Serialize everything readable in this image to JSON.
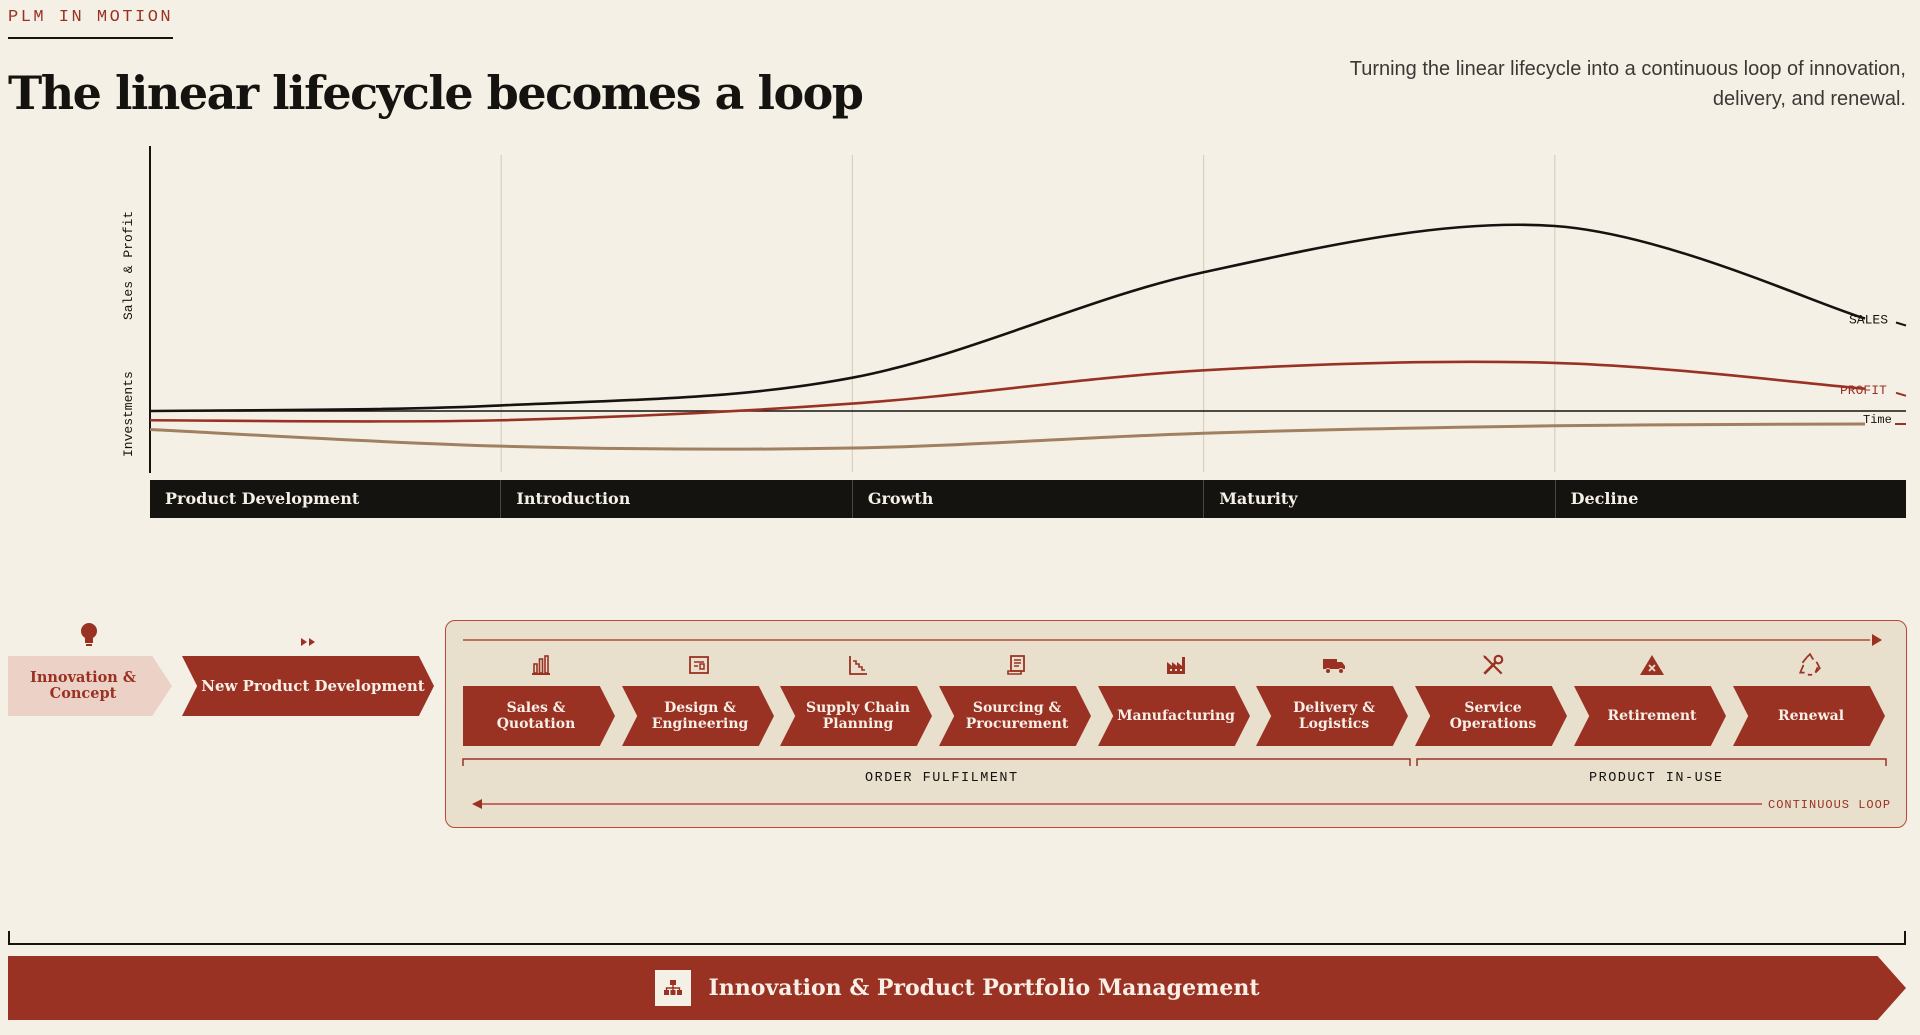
{
  "header": {
    "eyebrow": "PLM IN MOTION",
    "title": "The linear lifecycle becomes a loop",
    "subtitle": "Turning the linear lifecycle into a continuous loop of innovation, delivery, and renewal."
  },
  "chart_data": {
    "type": "line",
    "ylabel_top": "Sales & Profit",
    "ylabel_bottom": "Investments",
    "x_axis_label": "Time",
    "phases": [
      "Product Development",
      "Introduction",
      "Growth",
      "Maturity",
      "Decline"
    ],
    "x": [
      0,
      1,
      2,
      3,
      4,
      5
    ],
    "series": [
      {
        "name": "SALES",
        "color": "#15130f",
        "values": [
          0.0,
          0.03,
          0.18,
          0.75,
          1.0,
          0.5
        ]
      },
      {
        "name": "PROFIT",
        "color": "#9a3224",
        "values": [
          -0.05,
          -0.05,
          0.04,
          0.22,
          0.26,
          0.12
        ]
      },
      {
        "name": "",
        "color": "#a08060",
        "values": [
          -0.1,
          -0.19,
          -0.2,
          -0.12,
          -0.08,
          -0.07
        ]
      }
    ]
  },
  "pre_stages": {
    "innovation": "Innovation & Concept",
    "npd": "New Product Development"
  },
  "stages": [
    {
      "label": "Sales & Quotation",
      "icon": "bar-chart-icon"
    },
    {
      "label": "Design & Engineering",
      "icon": "blueprint-icon"
    },
    {
      "label": "Supply Chain Planning",
      "icon": "chart-decline-icon"
    },
    {
      "label": "Sourcing & Procurement",
      "icon": "document-icon"
    },
    {
      "label": "Manufacturing",
      "icon": "factory-icon"
    },
    {
      "label": "Delivery & Logistics",
      "icon": "truck-icon"
    },
    {
      "label": "Service Operations",
      "icon": "tools-icon"
    },
    {
      "label": "Retirement",
      "icon": "warning-x-icon"
    },
    {
      "label": "Renewal",
      "icon": "recycle-icon"
    }
  ],
  "groups": {
    "order_fulfilment": "ORDER FULFILMENT",
    "product_in_use": "PRODUCT IN-USE",
    "continuous_loop": "CONTINUOUS LOOP"
  },
  "banner": {
    "label": "Innovation & Product Portfolio Management",
    "icon": "hierarchy-icon"
  },
  "colors": {
    "background": "#f5f0e6",
    "accent": "#9a3224",
    "ink": "#15130f",
    "panel": "#e8dfcc"
  }
}
